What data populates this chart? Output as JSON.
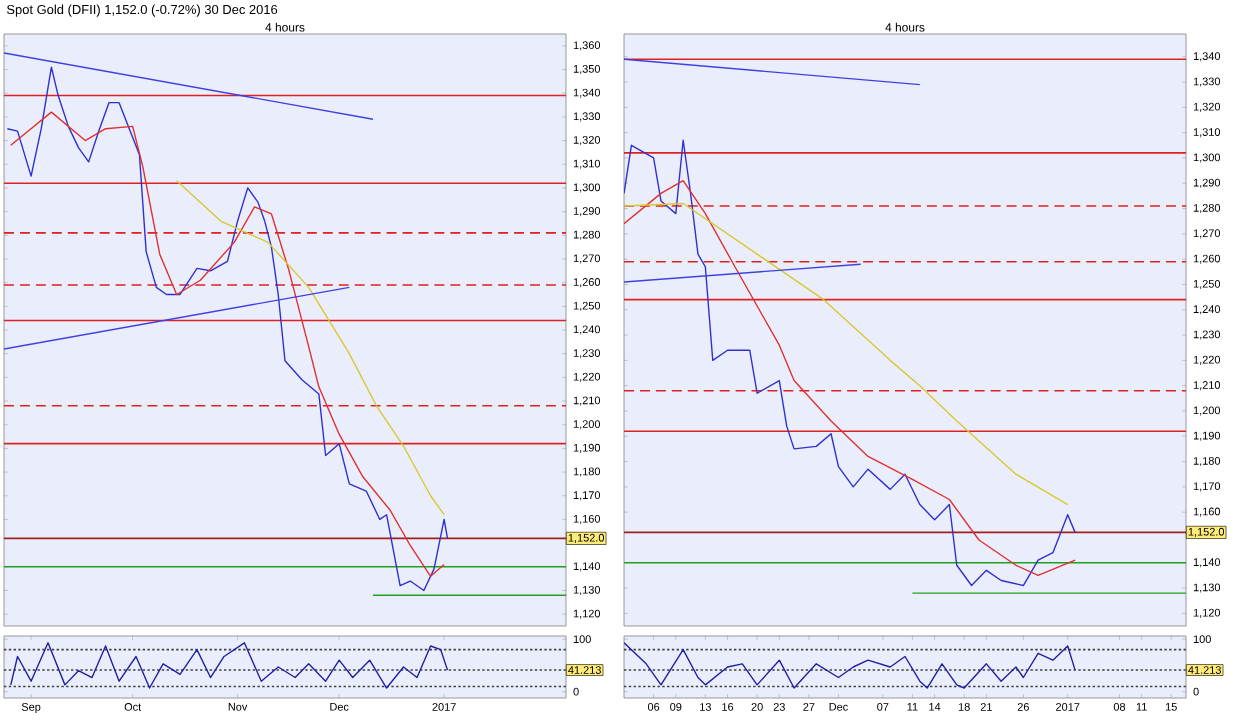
{
  "chart_data": [
    {
      "type": "line",
      "title": "Spot Gold (DFII)  1,152.0 (-0.72%)  30 Dec 2016",
      "subtitle": "4 hours",
      "tick_labels": "y",
      "xlim": [
        "2016-08-24",
        "2017-02-06"
      ],
      "ylim": [
        1115,
        1365
      ],
      "yticks": [
        {
          "value": 1120,
          "label": "1,120"
        },
        {
          "value": 1130,
          "label": "1,130"
        },
        {
          "value": 1140,
          "label": "1,140"
        },
        {
          "value": 1160,
          "label": "1,160"
        },
        {
          "value": 1170,
          "label": "1,170"
        },
        {
          "value": 1180,
          "label": "1,180"
        },
        {
          "value": 1190,
          "label": "1,190"
        },
        {
          "value": 1200,
          "label": "1,200"
        },
        {
          "value": 1210,
          "label": "1,210"
        },
        {
          "value": 1220,
          "label": "1,220"
        },
        {
          "value": 1230,
          "label": "1,230"
        },
        {
          "value": 1240,
          "label": "1,240"
        },
        {
          "value": 1250,
          "label": "1,250"
        },
        {
          "value": 1260,
          "label": "1,260"
        },
        {
          "value": 1270,
          "label": "1,270"
        },
        {
          "value": 1280,
          "label": "1,280"
        },
        {
          "value": 1290,
          "label": "1,290"
        },
        {
          "value": 1300,
          "label": "1,300"
        },
        {
          "value": 1310,
          "label": "1,310"
        },
        {
          "value": 1320,
          "label": "1,320"
        },
        {
          "value": 1330,
          "label": "1,330"
        },
        {
          "value": 1340,
          "label": "1,340"
        },
        {
          "value": 1350,
          "label": "1,350"
        },
        {
          "value": 1360,
          "label": "1,360"
        }
      ],
      "ref_lines": [
        {
          "axis": "y",
          "value": 1339,
          "color": "#e02020",
          "line_style": "solid"
        },
        {
          "axis": "y",
          "value": 1302,
          "color": "#e02020",
          "line_style": "solid"
        },
        {
          "axis": "y",
          "value": 1281,
          "color": "#e02020",
          "line_style": "dashed"
        },
        {
          "axis": "y",
          "value": 1259,
          "color": "#e02020",
          "line_style": "dashed"
        },
        {
          "axis": "y",
          "value": 1244,
          "color": "#e02020",
          "line_style": "solid"
        },
        {
          "axis": "y",
          "value": 1208,
          "color": "#e02020",
          "line_style": "dashed"
        },
        {
          "axis": "y",
          "value": 1192,
          "color": "#e02020",
          "line_style": "solid"
        },
        {
          "axis": "y",
          "value": 1152,
          "color": "#a02020",
          "line_style": "solid",
          "label": "1,152.0"
        },
        {
          "axis": "y",
          "value": 1140,
          "color": "#20a020",
          "line_style": "solid"
        }
      ],
      "series": [
        {
          "type": "line",
          "color": "#3030d0",
          "x": [
            "2016-08-25",
            "2016-08-28",
            "2016-09-01",
            "2016-09-04",
            "2016-09-07",
            "2016-09-09",
            "2016-09-12",
            "2016-09-15",
            "2016-09-18",
            "2016-09-21",
            "2016-09-24",
            "2016-09-27",
            "2016-09-30",
            "2016-10-03",
            "2016-10-05",
            "2016-10-08",
            "2016-10-11",
            "2016-10-15",
            "2016-10-20",
            "2016-10-24",
            "2016-10-29",
            "2016-11-01",
            "2016-11-04",
            "2016-11-07",
            "2016-11-09",
            "2016-11-11",
            "2016-11-13",
            "2016-11-15",
            "2016-11-20",
            "2016-11-25",
            "2016-11-27",
            "2016-12-01",
            "2016-12-04",
            "2016-12-09",
            "2016-12-13",
            "2016-12-15",
            "2016-12-19",
            "2016-12-22",
            "2016-12-26",
            "2016-12-29",
            "2017-01-01",
            "2017-01-02"
          ],
          "values": [
            1325,
            1324,
            1305,
            1325,
            1351,
            1339,
            1326,
            1317,
            1311,
            1324,
            1336,
            1336,
            1325,
            1314,
            1273,
            1258,
            1255,
            1255,
            1266,
            1265,
            1269,
            1286,
            1300,
            1294,
            1286,
            1275,
            1255,
            1227,
            1219,
            1213,
            1187,
            1192,
            1175,
            1172,
            1160,
            1162,
            1132,
            1134,
            1130,
            1139,
            1160,
            1152
          ]
        },
        {
          "type": "line",
          "color": "#e03030",
          "x": [
            "2016-08-26",
            "2016-09-07",
            "2016-09-17",
            "2016-09-23",
            "2016-10-01",
            "2016-10-04",
            "2016-10-09",
            "2016-10-14",
            "2016-10-21",
            "2016-10-31",
            "2016-11-06",
            "2016-11-11",
            "2016-11-16",
            "2016-11-22",
            "2016-11-25",
            "2016-12-01",
            "2016-12-08",
            "2016-12-16",
            "2016-12-22",
            "2016-12-28",
            "2017-01-01"
          ],
          "values": [
            1318,
            1332,
            1320,
            1325,
            1326,
            1309,
            1272,
            1255,
            1261,
            1277,
            1292,
            1289,
            1266,
            1233,
            1216,
            1196,
            1178,
            1164,
            1149,
            1136,
            1141
          ]
        },
        {
          "type": "line",
          "color": "#d8c830",
          "x": [
            "2016-10-14",
            "2016-10-27",
            "2016-11-10",
            "2016-11-22",
            "2016-12-04",
            "2016-12-12",
            "2016-12-20",
            "2016-12-28",
            "2017-01-01"
          ],
          "values": [
            1303,
            1286,
            1277,
            1258,
            1230,
            1208,
            1191,
            1170,
            1162
          ]
        },
        {
          "type": "line",
          "color": "#4040e0",
          "x": [
            "2016-08-24",
            "2016-12-11"
          ],
          "values": [
            1357,
            1329
          ]
        },
        {
          "type": "line",
          "color": "#4040e0",
          "x": [
            "2016-08-24",
            "2016-12-04"
          ],
          "values": [
            1232,
            1258
          ]
        },
        {
          "type": "line",
          "color": "#20a020",
          "x": [
            "2016-12-11",
            "2017-02-06"
          ],
          "values": [
            1128,
            1128
          ]
        }
      ]
    },
    {
      "type": "line",
      "xlim": [
        "2016-08-24",
        "2017-02-06"
      ],
      "ylim": [
        -12,
        106
      ],
      "xticks": [
        {
          "value": "2016-09-01",
          "label": "Sep"
        },
        {
          "value": "2016-10-01",
          "label": "Oct"
        },
        {
          "value": "2016-11-01",
          "label": "Nov"
        },
        {
          "value": "2016-12-01",
          "label": "Dec"
        },
        {
          "value": "2017-01-01",
          "label": "2017"
        }
      ],
      "yticks": [
        0,
        100
      ],
      "ref_lines": [
        {
          "axis": "y",
          "value": 80,
          "color": "#404040",
          "line_style": "dotted"
        },
        {
          "axis": "y",
          "value": 10,
          "color": "#404040",
          "line_style": "dotted"
        },
        {
          "axis": "y",
          "value": 41.213,
          "color": "#404040",
          "line_style": "dotted",
          "label": "41.213"
        }
      ],
      "series": [
        {
          "type": "line",
          "color": "#2020a0",
          "x": [
            "2016-08-26",
            "2016-08-28",
            "2016-09-01",
            "2016-09-06",
            "2016-09-11",
            "2016-09-15",
            "2016-09-19",
            "2016-09-23",
            "2016-09-27",
            "2016-10-02",
            "2016-10-06",
            "2016-10-10",
            "2016-10-15",
            "2016-10-20",
            "2016-10-24",
            "2016-10-28",
            "2016-11-03",
            "2016-11-08",
            "2016-11-13",
            "2016-11-18",
            "2016-11-22",
            "2016-11-27",
            "2016-12-01",
            "2016-12-05",
            "2016-12-10",
            "2016-12-15",
            "2016-12-20",
            "2016-12-24",
            "2016-12-28",
            "2016-12-31",
            "2017-01-02"
          ],
          "values": [
            13,
            67,
            20,
            93,
            13,
            40,
            27,
            87,
            20,
            67,
            7,
            53,
            33,
            80,
            27,
            67,
            93,
            20,
            47,
            27,
            53,
            20,
            60,
            27,
            60,
            7,
            47,
            27,
            87,
            80,
            41
          ]
        }
      ]
    },
    {
      "type": "line",
      "subtitle": "4 hours",
      "tick_labels": "y",
      "xlim": [
        "2016-11-02",
        "2017-01-17"
      ],
      "ylim": [
        1115,
        1349
      ],
      "yticks": [
        {
          "value": 1120,
          "label": "1,120"
        },
        {
          "value": 1130,
          "label": "1,130"
        },
        {
          "value": 1140,
          "label": "1,140"
        },
        {
          "value": 1160,
          "label": "1,160"
        },
        {
          "value": 1170,
          "label": "1,170"
        },
        {
          "value": 1180,
          "label": "1,180"
        },
        {
          "value": 1190,
          "label": "1,190"
        },
        {
          "value": 1200,
          "label": "1,200"
        },
        {
          "value": 1210,
          "label": "1,210"
        },
        {
          "value": 1220,
          "label": "1,220"
        },
        {
          "value": 1230,
          "label": "1,230"
        },
        {
          "value": 1240,
          "label": "1,240"
        },
        {
          "value": 1250,
          "label": "1,250"
        },
        {
          "value": 1260,
          "label": "1,260"
        },
        {
          "value": 1270,
          "label": "1,270"
        },
        {
          "value": 1280,
          "label": "1,280"
        },
        {
          "value": 1290,
          "label": "1,290"
        },
        {
          "value": 1300,
          "label": "1,300"
        },
        {
          "value": 1310,
          "label": "1,310"
        },
        {
          "value": 1320,
          "label": "1,320"
        },
        {
          "value": 1330,
          "label": "1,330"
        },
        {
          "value": 1340,
          "label": "1,340"
        }
      ],
      "ref_lines": [
        {
          "axis": "y",
          "value": 1339,
          "color": "#e02020",
          "line_style": "solid"
        },
        {
          "axis": "y",
          "value": 1302,
          "color": "#e02020",
          "line_style": "solid"
        },
        {
          "axis": "y",
          "value": 1281,
          "color": "#e02020",
          "line_style": "dashed"
        },
        {
          "axis": "y",
          "value": 1259,
          "color": "#e02020",
          "line_style": "dashed"
        },
        {
          "axis": "y",
          "value": 1244,
          "color": "#e02020",
          "line_style": "solid"
        },
        {
          "axis": "y",
          "value": 1208,
          "color": "#e02020",
          "line_style": "dashed"
        },
        {
          "axis": "y",
          "value": 1192,
          "color": "#e02020",
          "line_style": "solid"
        },
        {
          "axis": "y",
          "value": 1152,
          "color": "#a02020",
          "line_style": "solid",
          "label": "1,152.0"
        },
        {
          "axis": "y",
          "value": 1140,
          "color": "#20a020",
          "line_style": "solid"
        }
      ],
      "series": [
        {
          "type": "line",
          "color": "#3030d0",
          "x": [
            "2016-11-02",
            "2016-11-03",
            "2016-11-06",
            "2016-11-07",
            "2016-11-09",
            "2016-11-10",
            "2016-11-11",
            "2016-11-12",
            "2016-11-13",
            "2016-11-14",
            "2016-11-16",
            "2016-11-19",
            "2016-11-20",
            "2016-11-23",
            "2016-11-24",
            "2016-11-25",
            "2016-11-28",
            "2016-11-30",
            "2016-12-01",
            "2016-12-03",
            "2016-12-05",
            "2016-12-08",
            "2016-12-10",
            "2016-12-12",
            "2016-12-14",
            "2016-12-16",
            "2016-12-17",
            "2016-12-19",
            "2016-12-21",
            "2016-12-23",
            "2016-12-26",
            "2016-12-28",
            "2016-12-30",
            "2017-01-01",
            "2017-01-02"
          ],
          "values": [
            1286,
            1305,
            1300,
            1283,
            1278,
            1307,
            1286,
            1262,
            1257,
            1220,
            1224,
            1224,
            1207,
            1212,
            1194,
            1185,
            1186,
            1191,
            1178,
            1170,
            1177,
            1169,
            1175,
            1163,
            1157,
            1163,
            1139,
            1131,
            1137,
            1133,
            1131,
            1141,
            1144,
            1159,
            1152
          ]
        },
        {
          "type": "line",
          "color": "#e03030",
          "x": [
            "2016-11-02",
            "2016-11-07",
            "2016-11-10",
            "2016-11-13",
            "2016-11-17",
            "2016-11-23",
            "2016-11-25",
            "2016-11-30",
            "2016-12-05",
            "2016-12-11",
            "2016-12-16",
            "2016-12-20",
            "2016-12-25",
            "2016-12-28",
            "2017-01-02"
          ],
          "values": [
            1274,
            1286,
            1291,
            1278,
            1257,
            1226,
            1212,
            1196,
            1182,
            1173,
            1165,
            1149,
            1139,
            1135,
            1141
          ]
        },
        {
          "type": "line",
          "color": "#d8c830",
          "x": [
            "2016-11-02",
            "2016-11-10",
            "2016-11-20",
            "2016-11-29",
            "2016-12-08",
            "2016-12-12",
            "2016-12-17",
            "2016-12-25",
            "2017-01-01"
          ],
          "values": [
            1281,
            1282,
            1262,
            1244,
            1220,
            1210,
            1196,
            1175,
            1163
          ]
        },
        {
          "type": "line",
          "color": "#4040e0",
          "x": [
            "2016-11-02",
            "2016-12-12"
          ],
          "values": [
            1339,
            1329
          ]
        },
        {
          "type": "line",
          "color": "#4040e0",
          "x": [
            "2016-11-02",
            "2016-12-04"
          ],
          "values": [
            1251,
            1258
          ]
        },
        {
          "type": "line",
          "color": "#20a020",
          "x": [
            "2016-12-11",
            "2017-01-17"
          ],
          "values": [
            1128,
            1128
          ]
        }
      ]
    },
    {
      "type": "line",
      "xlim": [
        "2016-11-02",
        "2017-01-17"
      ],
      "ylim": [
        -12,
        106
      ],
      "xticks": [
        {
          "value": "2016-11-06",
          "label": "06"
        },
        {
          "value": "2016-11-09",
          "label": "09"
        },
        {
          "value": "2016-11-13",
          "label": "13"
        },
        {
          "value": "2016-11-16",
          "label": "16"
        },
        {
          "value": "2016-11-20",
          "label": "20"
        },
        {
          "value": "2016-11-23",
          "label": "23"
        },
        {
          "value": "2016-11-27",
          "label": "27"
        },
        {
          "value": "2016-12-01",
          "label": "Dec"
        },
        {
          "value": "2016-12-07",
          "label": "07"
        },
        {
          "value": "2016-12-11",
          "label": "11"
        },
        {
          "value": "2016-12-14",
          "label": "14"
        },
        {
          "value": "2016-12-18",
          "label": "18"
        },
        {
          "value": "2016-12-21",
          "label": "21"
        },
        {
          "value": "2016-12-26",
          "label": "26"
        },
        {
          "value": "2017-01-01",
          "label": "2017"
        },
        {
          "value": "2017-01-08",
          "label": "08"
        },
        {
          "value": "2017-01-11",
          "label": "11"
        },
        {
          "value": "2017-01-15",
          "label": "15"
        }
      ],
      "yticks": [
        0,
        100
      ],
      "ref_lines": [
        {
          "axis": "y",
          "value": 80,
          "color": "#404040",
          "line_style": "dotted"
        },
        {
          "axis": "y",
          "value": 10,
          "color": "#404040",
          "line_style": "dotted"
        },
        {
          "axis": "y",
          "value": 41.213,
          "color": "#404040",
          "line_style": "dotted",
          "label": "41.213"
        }
      ],
      "series": [
        {
          "type": "line",
          "color": "#2020a0",
          "x": [
            "2016-11-02",
            "2016-11-05",
            "2016-11-07",
            "2016-11-10",
            "2016-11-12",
            "2016-11-13",
            "2016-11-16",
            "2016-11-18",
            "2016-11-20",
            "2016-11-23",
            "2016-11-25",
            "2016-11-28",
            "2016-12-01",
            "2016-12-03",
            "2016-12-05",
            "2016-12-08",
            "2016-12-10",
            "2016-12-12",
            "2016-12-13",
            "2016-12-15",
            "2016-12-17",
            "2016-12-18",
            "2016-12-21",
            "2016-12-23",
            "2016-12-25",
            "2016-12-26",
            "2016-12-28",
            "2016-12-30",
            "2017-01-01",
            "2017-01-02"
          ],
          "values": [
            93,
            53,
            13,
            80,
            27,
            13,
            47,
            53,
            13,
            60,
            7,
            53,
            27,
            47,
            60,
            47,
            67,
            20,
            7,
            53,
            13,
            7,
            53,
            20,
            47,
            27,
            73,
            60,
            87,
            41
          ]
        }
      ]
    }
  ]
}
